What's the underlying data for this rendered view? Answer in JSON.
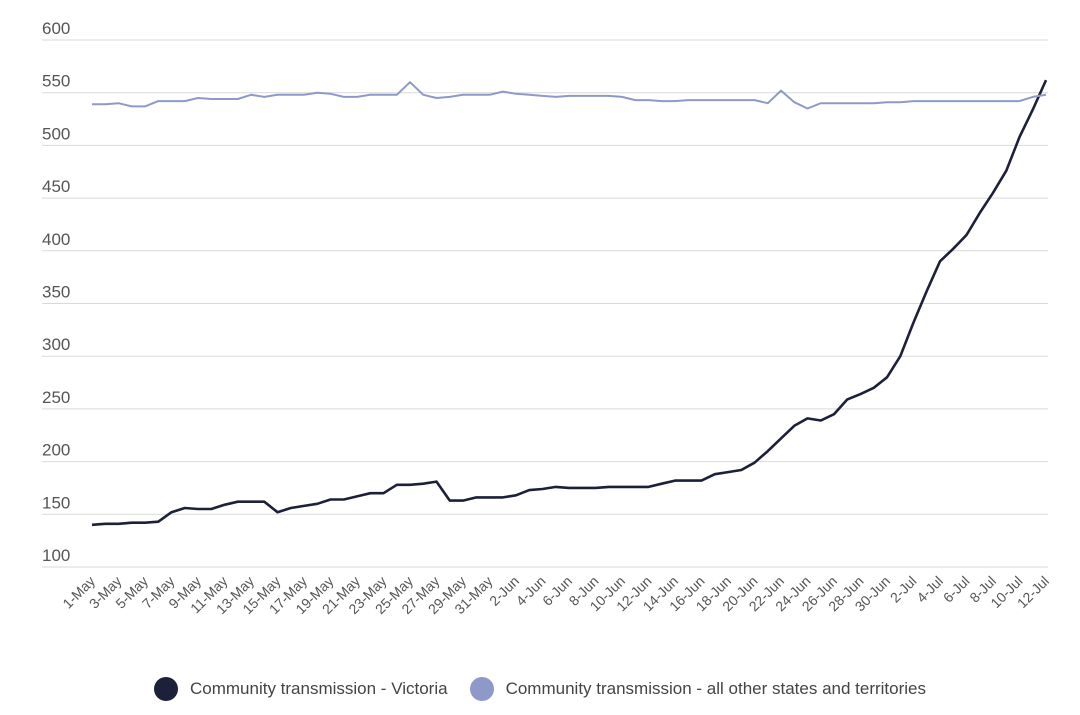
{
  "chart_data": {
    "type": "line",
    "title": "",
    "xlabel": "",
    "ylabel": "",
    "ylim": [
      100,
      600
    ],
    "yticks": [
      100,
      150,
      200,
      250,
      300,
      350,
      400,
      450,
      500,
      550,
      600
    ],
    "grid": true,
    "legend_position": "bottom",
    "x": [
      "1-May",
      "2-May",
      "3-May",
      "4-May",
      "5-May",
      "6-May",
      "7-May",
      "8-May",
      "9-May",
      "10-May",
      "11-May",
      "12-May",
      "13-May",
      "14-May",
      "15-May",
      "16-May",
      "17-May",
      "18-May",
      "19-May",
      "20-May",
      "21-May",
      "22-May",
      "23-May",
      "24-May",
      "25-May",
      "26-May",
      "27-May",
      "28-May",
      "29-May",
      "30-May",
      "31-May",
      "1-Jun",
      "2-Jun",
      "3-Jun",
      "4-Jun",
      "5-Jun",
      "6-Jun",
      "7-Jun",
      "8-Jun",
      "9-Jun",
      "10-Jun",
      "11-Jun",
      "12-Jun",
      "13-Jun",
      "14-Jun",
      "15-Jun",
      "16-Jun",
      "17-Jun",
      "18-Jun",
      "19-Jun",
      "20-Jun",
      "21-Jun",
      "22-Jun",
      "23-Jun",
      "24-Jun",
      "25-Jun",
      "26-Jun",
      "27-Jun",
      "28-Jun",
      "29-Jun",
      "30-Jun",
      "1-Jul",
      "2-Jul",
      "3-Jul",
      "4-Jul",
      "5-Jul",
      "6-Jul",
      "7-Jul",
      "8-Jul",
      "9-Jul",
      "10-Jul",
      "11-Jul",
      "12-Jul"
    ],
    "x_tick_labels": [
      "1-May",
      "3-May",
      "5-May",
      "7-May",
      "9-May",
      "11-May",
      "13-May",
      "15-May",
      "17-May",
      "19-May",
      "21-May",
      "23-May",
      "25-May",
      "27-May",
      "29-May",
      "31-May",
      "2-Jun",
      "4-Jun",
      "6-Jun",
      "8-Jun",
      "10-Jun",
      "12-Jun",
      "14-Jun",
      "16-Jun",
      "18-Jun",
      "20-Jun",
      "22-Jun",
      "24-Jun",
      "26-Jun",
      "28-Jun",
      "30-Jun",
      "2-Jul",
      "4-Jul",
      "6-Jul",
      "8-Jul",
      "10-Jul",
      "12-Jul"
    ],
    "series": [
      {
        "name": "Community transmission - Victoria",
        "color": "#1c2038",
        "values": [
          140,
          141,
          141,
          142,
          142,
          143,
          152,
          156,
          155,
          155,
          159,
          162,
          162,
          162,
          152,
          156,
          158,
          160,
          164,
          164,
          167,
          170,
          170,
          178,
          178,
          179,
          181,
          163,
          163,
          166,
          166,
          166,
          168,
          173,
          174,
          176,
          175,
          175,
          175,
          176,
          176,
          176,
          176,
          179,
          182,
          182,
          182,
          188,
          190,
          192,
          199,
          210,
          222,
          234,
          241,
          239,
          245,
          259,
          264,
          270,
          280,
          300,
          332,
          362,
          390,
          402,
          415,
          436,
          455,
          476,
          508,
          534,
          562
        ]
      },
      {
        "name": "Community transmission - all other states and territories",
        "color": "#8f99c9",
        "values": [
          539,
          539,
          540,
          537,
          537,
          542,
          542,
          542,
          545,
          544,
          544,
          544,
          548,
          546,
          548,
          548,
          548,
          550,
          549,
          546,
          546,
          548,
          548,
          548,
          560,
          548,
          545,
          546,
          548,
          548,
          548,
          551,
          549,
          548,
          547,
          546,
          547,
          547,
          547,
          547,
          546,
          543,
          543,
          542,
          542,
          543,
          543,
          543,
          543,
          543,
          543,
          540,
          552,
          541,
          535,
          540,
          540,
          540,
          540,
          540,
          541,
          541,
          542,
          542,
          542,
          542,
          542,
          542,
          542,
          542,
          542,
          546,
          548
        ]
      }
    ]
  }
}
